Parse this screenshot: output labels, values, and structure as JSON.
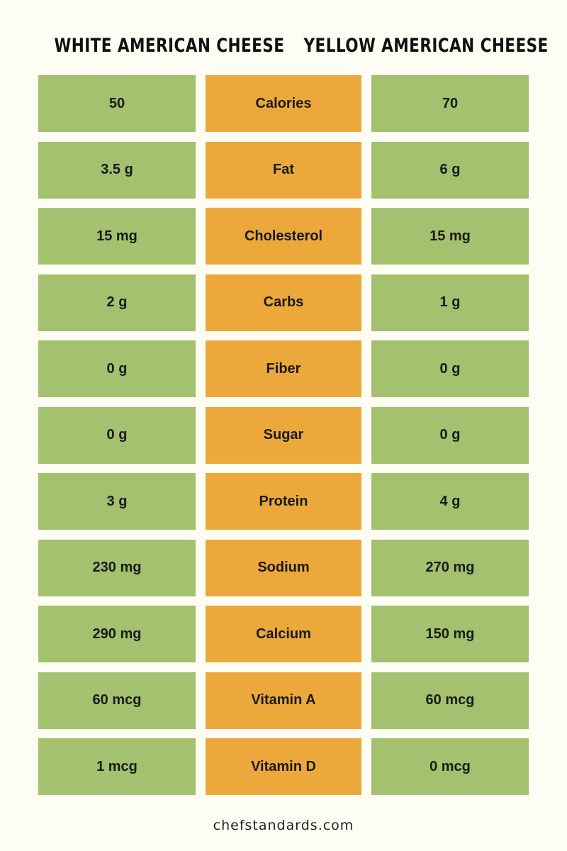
{
  "header": {
    "white_title": "WHITE AMERICAN CHEESE",
    "yellow_title": "YELLOW AMERICAN CHEESE"
  },
  "rows": [
    {
      "white": "50",
      "label": "Calories",
      "yellow": "70"
    },
    {
      "white": "3.5 g",
      "label": "Fat",
      "yellow": "6 g"
    },
    {
      "white": "15 mg",
      "label": "Cholesterol",
      "yellow": "15 mg"
    },
    {
      "white": "2 g",
      "label": "Carbs",
      "yellow": "1 g"
    },
    {
      "white": "0 g",
      "label": "Fiber",
      "yellow": "0 g"
    },
    {
      "white": "0 g",
      "label": "Sugar",
      "yellow": "0 g"
    },
    {
      "white": "3 g",
      "label": "Protein",
      "yellow": "4 g"
    },
    {
      "white": "230 mg",
      "label": "Sodium",
      "yellow": "270 mg"
    },
    {
      "white": "290 mg",
      "label": "Calcium",
      "yellow": "150 mg"
    },
    {
      "white": "60 mcg",
      "label": "Vitamin A",
      "yellow": "60 mcg"
    },
    {
      "white": "1 mcg",
      "label": "Vitamin D",
      "yellow": "0 mcg"
    }
  ],
  "footer": {
    "site": "chefstandards.com"
  },
  "colors": {
    "background": "#fdfdf3",
    "value_cell": "#a3c16e",
    "label_cell": "#eca83a",
    "text": "#1a1a1a"
  }
}
